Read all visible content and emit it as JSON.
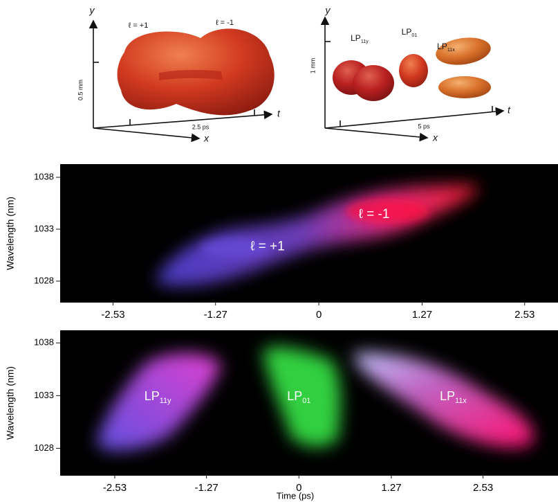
{
  "diagrams": [
    {
      "axis_y": "y",
      "axis_t": "t",
      "axis_x": "x",
      "labels": [
        "ℓ = +1",
        "ℓ = -1"
      ],
      "scale_y": "0.5 mm",
      "scale_t": "2.5 ps"
    },
    {
      "axis_y": "y",
      "axis_t": "t",
      "axis_x": "x",
      "labels": [
        {
          "base": "LP",
          "sub": "11y"
        },
        {
          "base": "LP",
          "sub": "01"
        },
        {
          "base": "LP",
          "sub": "11x"
        }
      ],
      "scale_y": "1 mm",
      "scale_t": "5 ps"
    }
  ],
  "chart_data": [
    {
      "type": "spectrogram",
      "ylabel": "Wavelength (nm)",
      "xlim": [
        -3.18,
        2.94
      ],
      "xticks": [
        -2.53,
        -1.27,
        0,
        1.27,
        2.53
      ],
      "ylim": [
        1025.93,
        1039.27
      ],
      "yticks": [
        1028,
        1033,
        1038
      ],
      "annotations": [
        {
          "text": "ℓ = +1",
          "x": -0.63,
          "y": 1031.3
        },
        {
          "text": "ℓ = -1",
          "x": 0.68,
          "y": 1034.4
        }
      ]
    },
    {
      "type": "spectrogram",
      "ylabel": "Wavelength (nm)",
      "xlabel": "Time (ps)",
      "xlim": [
        -3.28,
        3.56
      ],
      "xticks": [
        -2.53,
        -1.27,
        0,
        1.27,
        2.53
      ],
      "ylim": [
        1025.4,
        1039.2
      ],
      "yticks": [
        1028,
        1033,
        1038
      ],
      "annotations": [
        {
          "text": {
            "base": "LP",
            "sub": "11y"
          },
          "x": -1.94,
          "y": 1032.9
        },
        {
          "text": {
            "base": "LP",
            "sub": "01"
          },
          "x": 0,
          "y": 1032.9
        },
        {
          "text": {
            "base": "LP",
            "sub": "11x"
          },
          "x": 2.12,
          "y": 1032.9
        }
      ]
    }
  ]
}
